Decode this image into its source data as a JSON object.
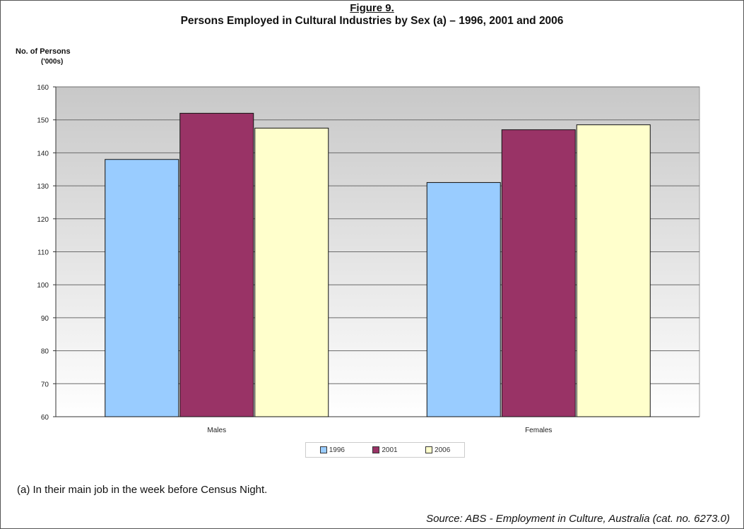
{
  "figure": {
    "label": "Figure 9.",
    "title": "Persons Employed in Cultural Industries by Sex (a) – 1996, 2001 and 2006",
    "footnote": "(a)   In their main job in the week before Census Night.",
    "source": "Source: ABS - Employment in Culture, Australia (cat. no. 6273.0)"
  },
  "chart_data": {
    "type": "bar",
    "title": "Persons Employed in Cultural Industries by Sex (a) – 1996, 2001 and 2006",
    "ylabel": "No. of Persons ('000s)",
    "ylabel_line1": "No. of Persons",
    "ylabel_line2": "('000s)",
    "xlabel": "",
    "categories": [
      "Males",
      "Females"
    ],
    "series": [
      {
        "name": "1996",
        "values": [
          138,
          131
        ],
        "color": "#99ccff"
      },
      {
        "name": "2001",
        "values": [
          152,
          147
        ],
        "color": "#993366"
      },
      {
        "name": "2006",
        "values": [
          147.5,
          148.5
        ],
        "color": "#ffffcc"
      }
    ],
    "ylim": [
      60,
      160
    ],
    "yticks": [
      "60",
      "70",
      "80",
      "90",
      "100",
      "110",
      "120",
      "130",
      "140",
      "150",
      "160"
    ],
    "grid": true,
    "legend": "bottom"
  }
}
